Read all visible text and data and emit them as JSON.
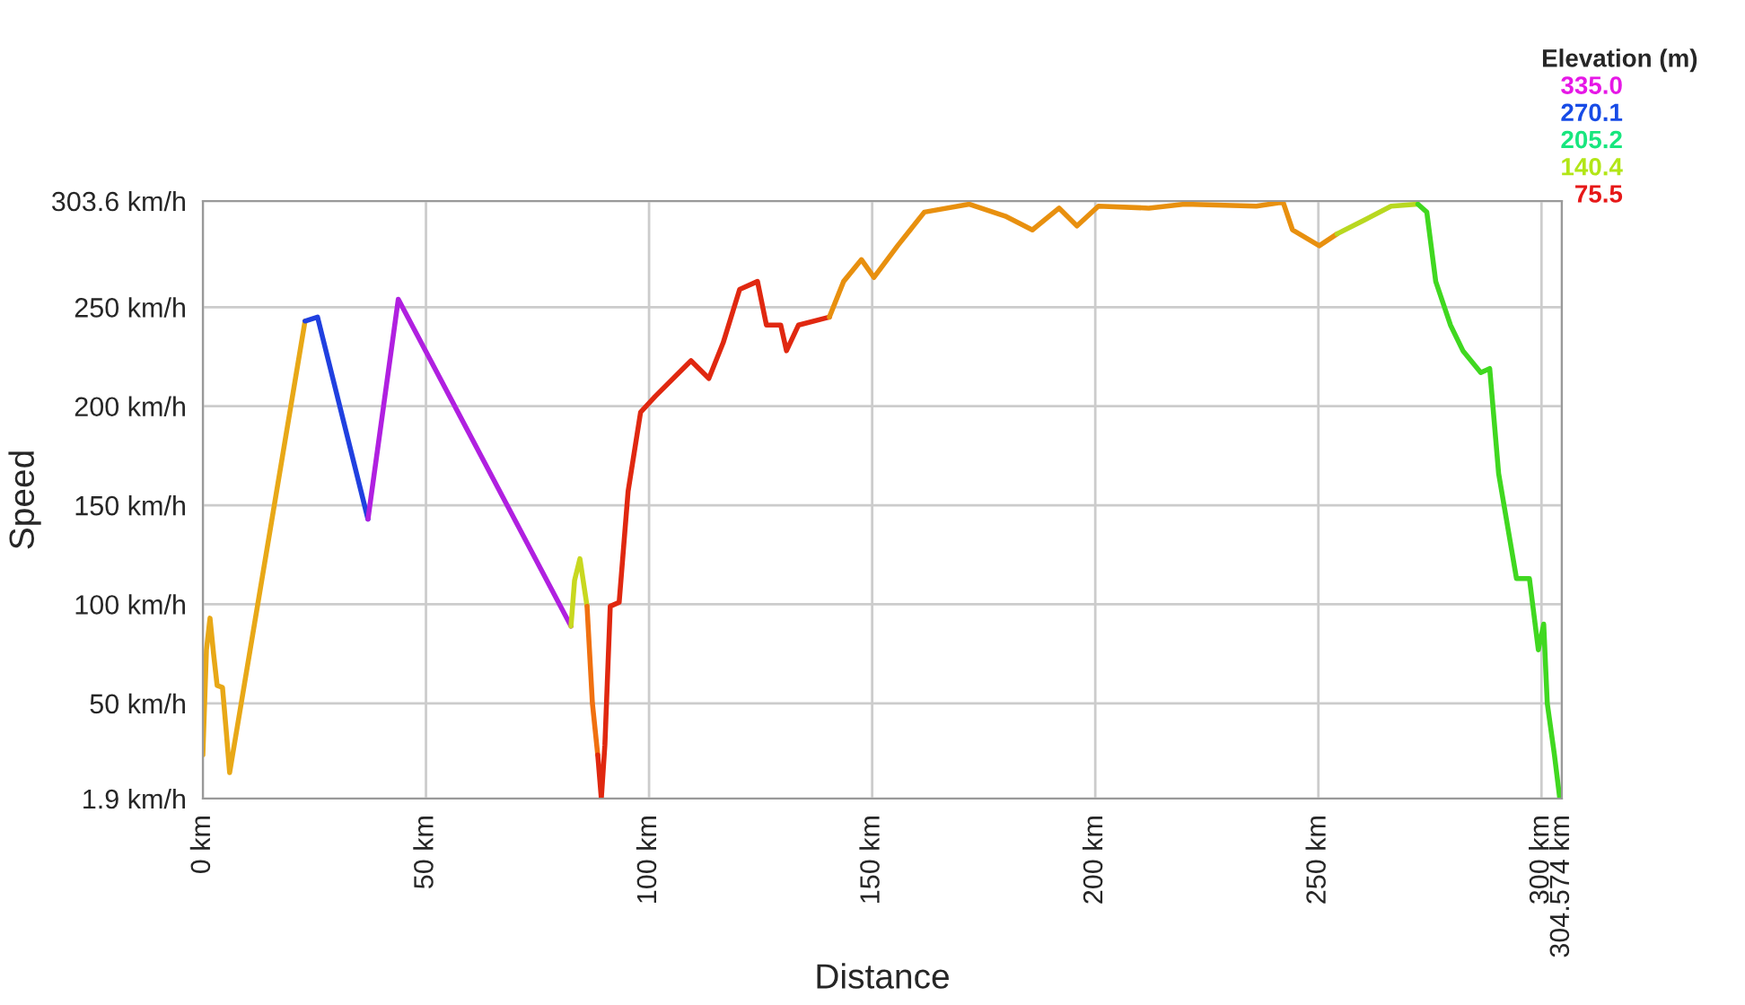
{
  "chart_data": {
    "type": "line",
    "xlabel": "Distance",
    "ylabel": "Speed",
    "legend_title": "Elevation (m)",
    "annotations": [
      "335.0",
      "270.1",
      "205.2",
      "140.4",
      "75.5"
    ],
    "xlim": [
      0,
      304.574
    ],
    "ylim": [
      1.9,
      303.6
    ],
    "xticks": [
      {
        "value": 0,
        "label": "0 km"
      },
      {
        "value": 50,
        "label": "50 km"
      },
      {
        "value": 100,
        "label": "100 km"
      },
      {
        "value": 150,
        "label": "150 km"
      },
      {
        "value": 200,
        "label": "200 km"
      },
      {
        "value": 250,
        "label": "250 km"
      },
      {
        "value": 300,
        "label": "300 km"
      },
      {
        "value": 304.574,
        "label": "304.574 km"
      }
    ],
    "yticks": [
      {
        "value": 1.9,
        "label": "1.9 km/h"
      },
      {
        "value": 50,
        "label": "50 km/h"
      },
      {
        "value": 100,
        "label": "100 km/h"
      },
      {
        "value": 150,
        "label": "150 km/h"
      },
      {
        "value": 200,
        "label": "200 km/h"
      },
      {
        "value": 250,
        "label": "250 km/h"
      },
      {
        "value": 303.6,
        "label": "303.6 km/h"
      }
    ],
    "grid": true,
    "line_style": "solid",
    "series": [
      {
        "color": "#e8a817",
        "x": [
          0,
          0.8,
          1.6,
          2.4,
          3.2,
          4.4,
          5.2,
          6.0,
          22.9
        ],
        "values": [
          24,
          77,
          93,
          75,
          59,
          58,
          37,
          15,
          243
        ]
      },
      {
        "color": "#2040e0",
        "x": [
          22.9,
          25.7,
          37.0
        ],
        "values": [
          243,
          245,
          143
        ]
      },
      {
        "color": "#b020e0",
        "x": [
          37.0,
          43.8,
          82.5
        ],
        "values": [
          143,
          254,
          89
        ]
      },
      {
        "color": "#c8d820",
        "x": [
          82.5,
          83.3,
          84.5,
          86.1
        ],
        "values": [
          89,
          112,
          123,
          99
        ]
      },
      {
        "color": "#f07010",
        "x": [
          86.1,
          87.3,
          88.5
        ],
        "values": [
          99,
          50,
          24
        ]
      },
      {
        "color": "#e02810",
        "x": [
          88.5,
          89.3,
          90.1,
          91.3,
          93.3,
          95.3,
          98.1,
          101.4,
          109.4,
          113.4,
          116.6,
          120.3,
          124.3,
          126.3,
          129.5,
          130.8,
          133.5,
          140.4
        ],
        "values": [
          24,
          2,
          29,
          99,
          101,
          157,
          197,
          205,
          223,
          214,
          232,
          259,
          263,
          241,
          241,
          228,
          241,
          245
        ]
      },
      {
        "color": "#e8900f",
        "x": [
          140.4,
          143.6,
          147.6,
          150.4,
          155.7,
          161.7,
          171.8,
          179.8,
          185.9,
          191.9,
          195.9,
          200.7,
          212,
          220,
          236.1,
          242.1,
          244.2,
          250.2,
          254.2
        ],
        "values": [
          245,
          263,
          274,
          265,
          281,
          298,
          302,
          296,
          289,
          300,
          291,
          301,
          300,
          302,
          301,
          303,
          289,
          281,
          287
        ]
      },
      {
        "color": "#b8d820",
        "x": [
          254.2,
          260.3,
          266.3,
          272.3
        ],
        "values": [
          287,
          294,
          301,
          302
        ]
      },
      {
        "color": "#40d820",
        "x": [
          272.3,
          274.3,
          276.3,
          279.6,
          282.4,
          286.4,
          288.4,
          290.4,
          294.4,
          297.3,
          299.3,
          300.5,
          301.3,
          302.9,
          304.1
        ],
        "values": [
          302,
          298,
          263,
          241,
          228,
          217,
          219,
          166,
          113,
          113,
          77,
          90,
          50,
          24,
          2
        ]
      }
    ]
  }
}
